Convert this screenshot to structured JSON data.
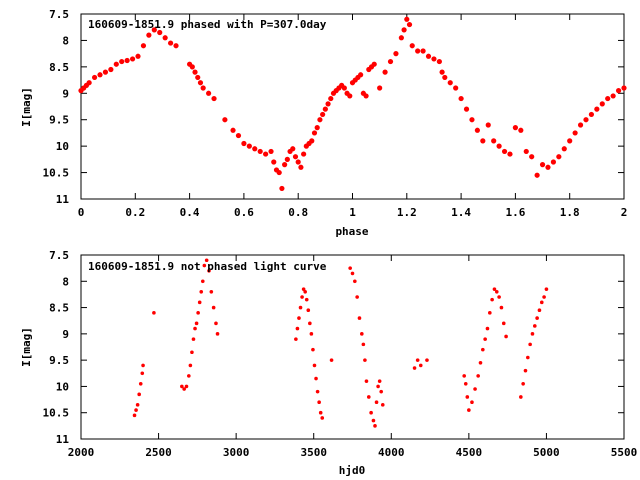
{
  "colors": {
    "points": "#ff0000",
    "frame": "#000000",
    "background": "#ffffff"
  },
  "chart_data": [
    {
      "type": "scatter",
      "title": "160609-1851.9 phased with P=307.0day",
      "xlabel": "phase",
      "ylabel": "I[mag]",
      "xlim": [
        0,
        2
      ],
      "ylim": [
        7.5,
        11
      ],
      "y_inverted": true,
      "grid": false,
      "x_ticks": [
        "0",
        "0.2",
        "0.4",
        "0.6",
        "0.8",
        "1",
        "1.2",
        "1.4",
        "1.6",
        "1.8",
        "2"
      ],
      "y_ticks": [
        "7.5",
        "8",
        "8.5",
        "9",
        "9.5",
        "10",
        "10.5",
        "11"
      ],
      "points": [
        [
          0.0,
          8.95
        ],
        [
          0.01,
          8.9
        ],
        [
          0.02,
          8.85
        ],
        [
          0.03,
          8.8
        ],
        [
          0.05,
          8.7
        ],
        [
          0.07,
          8.65
        ],
        [
          0.09,
          8.6
        ],
        [
          0.11,
          8.55
        ],
        [
          0.13,
          8.45
        ],
        [
          0.15,
          8.4
        ],
        [
          0.17,
          8.38
        ],
        [
          0.19,
          8.35
        ],
        [
          0.21,
          8.3
        ],
        [
          0.23,
          8.1
        ],
        [
          0.25,
          7.9
        ],
        [
          0.27,
          7.8
        ],
        [
          0.29,
          7.85
        ],
        [
          0.31,
          7.95
        ],
        [
          0.33,
          8.05
        ],
        [
          0.35,
          8.1
        ],
        [
          0.4,
          8.45
        ],
        [
          0.41,
          8.5
        ],
        [
          0.42,
          8.6
        ],
        [
          0.43,
          8.7
        ],
        [
          0.44,
          8.8
        ],
        [
          0.45,
          8.9
        ],
        [
          0.47,
          9.0
        ],
        [
          0.49,
          9.1
        ],
        [
          0.53,
          9.5
        ],
        [
          0.56,
          9.7
        ],
        [
          0.58,
          9.8
        ],
        [
          0.6,
          9.95
        ],
        [
          0.62,
          10.0
        ],
        [
          0.64,
          10.05
        ],
        [
          0.66,
          10.1
        ],
        [
          0.68,
          10.15
        ],
        [
          0.7,
          10.1
        ],
        [
          0.71,
          10.3
        ],
        [
          0.72,
          10.45
        ],
        [
          0.73,
          10.5
        ],
        [
          0.74,
          10.8
        ],
        [
          0.75,
          10.35
        ],
        [
          0.76,
          10.25
        ],
        [
          0.77,
          10.1
        ],
        [
          0.78,
          10.05
        ],
        [
          0.79,
          10.2
        ],
        [
          0.8,
          10.3
        ],
        [
          0.81,
          10.4
        ],
        [
          0.82,
          10.15
        ],
        [
          0.83,
          10.0
        ],
        [
          0.84,
          9.95
        ],
        [
          0.85,
          9.9
        ],
        [
          0.86,
          9.75
        ],
        [
          0.87,
          9.65
        ],
        [
          0.88,
          9.5
        ],
        [
          0.89,
          9.4
        ],
        [
          0.9,
          9.3
        ],
        [
          0.91,
          9.2
        ],
        [
          0.92,
          9.1
        ],
        [
          0.93,
          9.0
        ],
        [
          0.94,
          8.95
        ],
        [
          0.95,
          8.9
        ],
        [
          0.96,
          8.85
        ],
        [
          0.97,
          8.9
        ],
        [
          0.98,
          9.0
        ],
        [
          0.99,
          9.05
        ],
        [
          1.0,
          8.8
        ],
        [
          1.01,
          8.75
        ],
        [
          1.02,
          8.7
        ],
        [
          1.03,
          8.65
        ],
        [
          1.04,
          9.0
        ],
        [
          1.05,
          9.05
        ],
        [
          1.06,
          8.55
        ],
        [
          1.07,
          8.5
        ],
        [
          1.08,
          8.45
        ],
        [
          1.1,
          8.9
        ],
        [
          1.12,
          8.6
        ],
        [
          1.14,
          8.4
        ],
        [
          1.16,
          8.25
        ],
        [
          1.18,
          7.95
        ],
        [
          1.19,
          7.8
        ],
        [
          1.2,
          7.6
        ],
        [
          1.21,
          7.7
        ],
        [
          1.22,
          8.1
        ],
        [
          1.24,
          8.2
        ],
        [
          1.26,
          8.2
        ],
        [
          1.28,
          8.3
        ],
        [
          1.3,
          8.35
        ],
        [
          1.32,
          8.4
        ],
        [
          1.33,
          8.6
        ],
        [
          1.34,
          8.7
        ],
        [
          1.36,
          8.8
        ],
        [
          1.38,
          8.9
        ],
        [
          1.4,
          9.1
        ],
        [
          1.42,
          9.3
        ],
        [
          1.44,
          9.5
        ],
        [
          1.46,
          9.7
        ],
        [
          1.48,
          9.9
        ],
        [
          1.5,
          9.6
        ],
        [
          1.52,
          9.9
        ],
        [
          1.54,
          10.0
        ],
        [
          1.56,
          10.1
        ],
        [
          1.58,
          10.15
        ],
        [
          1.6,
          9.65
        ],
        [
          1.62,
          9.7
        ],
        [
          1.64,
          10.1
        ],
        [
          1.66,
          10.2
        ],
        [
          1.68,
          10.55
        ],
        [
          1.7,
          10.35
        ],
        [
          1.72,
          10.4
        ],
        [
          1.74,
          10.3
        ],
        [
          1.76,
          10.2
        ],
        [
          1.78,
          10.05
        ],
        [
          1.8,
          9.9
        ],
        [
          1.82,
          9.75
        ],
        [
          1.84,
          9.6
        ],
        [
          1.86,
          9.5
        ],
        [
          1.88,
          9.4
        ],
        [
          1.9,
          9.3
        ],
        [
          1.92,
          9.2
        ],
        [
          1.94,
          9.1
        ],
        [
          1.96,
          9.05
        ],
        [
          1.98,
          8.95
        ],
        [
          2.0,
          8.9
        ]
      ]
    },
    {
      "type": "scatter",
      "title": "160609-1851.9 not phased light curve",
      "xlabel": "hjd0",
      "ylabel": "I[mag]",
      "xlim": [
        2000,
        5500
      ],
      "ylim": [
        7.5,
        11
      ],
      "y_inverted": true,
      "grid": false,
      "x_ticks": [
        "2000",
        "2500",
        "3000",
        "3500",
        "4000",
        "4500",
        "5000",
        "5500"
      ],
      "y_ticks": [
        "7.5",
        "8",
        "8.5",
        "9",
        "9.5",
        "10",
        "10.5",
        "11"
      ],
      "points": [
        [
          2345,
          10.55
        ],
        [
          2355,
          10.45
        ],
        [
          2365,
          10.35
        ],
        [
          2375,
          10.15
        ],
        [
          2385,
          9.95
        ],
        [
          2395,
          9.75
        ],
        [
          2400,
          9.6
        ],
        [
          2470,
          8.6
        ],
        [
          2650,
          10.0
        ],
        [
          2665,
          10.05
        ],
        [
          2680,
          10.0
        ],
        [
          2695,
          9.8
        ],
        [
          2705,
          9.6
        ],
        [
          2715,
          9.35
        ],
        [
          2725,
          9.1
        ],
        [
          2735,
          8.9
        ],
        [
          2745,
          8.8
        ],
        [
          2755,
          8.6
        ],
        [
          2765,
          8.4
        ],
        [
          2775,
          8.2
        ],
        [
          2785,
          8.0
        ],
        [
          2795,
          7.7
        ],
        [
          2810,
          7.6
        ],
        [
          2825,
          7.8
        ],
        [
          2840,
          8.2
        ],
        [
          2855,
          8.5
        ],
        [
          2870,
          8.8
        ],
        [
          2880,
          9.0
        ],
        [
          3385,
          9.1
        ],
        [
          3395,
          8.9
        ],
        [
          3405,
          8.7
        ],
        [
          3415,
          8.5
        ],
        [
          3425,
          8.3
        ],
        [
          3435,
          8.15
        ],
        [
          3445,
          8.2
        ],
        [
          3455,
          8.35
        ],
        [
          3465,
          8.55
        ],
        [
          3475,
          8.8
        ],
        [
          3485,
          9.0
        ],
        [
          3495,
          9.3
        ],
        [
          3505,
          9.6
        ],
        [
          3515,
          9.85
        ],
        [
          3525,
          10.1
        ],
        [
          3535,
          10.3
        ],
        [
          3545,
          10.5
        ],
        [
          3555,
          10.6
        ],
        [
          3615,
          9.5
        ],
        [
          3735,
          7.75
        ],
        [
          3750,
          7.85
        ],
        [
          3765,
          8.0
        ],
        [
          3780,
          8.3
        ],
        [
          3795,
          8.7
        ],
        [
          3810,
          9.0
        ],
        [
          3820,
          9.2
        ],
        [
          3830,
          9.5
        ],
        [
          3840,
          9.9
        ],
        [
          3855,
          10.2
        ],
        [
          3870,
          10.5
        ],
        [
          3885,
          10.65
        ],
        [
          3895,
          10.75
        ],
        [
          3905,
          10.3
        ],
        [
          3915,
          10.0
        ],
        [
          3925,
          9.9
        ],
        [
          3935,
          10.1
        ],
        [
          3945,
          10.35
        ],
        [
          4150,
          9.65
        ],
        [
          4170,
          9.5
        ],
        [
          4190,
          9.6
        ],
        [
          4230,
          9.5
        ],
        [
          4470,
          9.8
        ],
        [
          4480,
          9.95
        ],
        [
          4490,
          10.2
        ],
        [
          4500,
          10.45
        ],
        [
          4520,
          10.3
        ],
        [
          4540,
          10.05
        ],
        [
          4560,
          9.8
        ],
        [
          4575,
          9.55
        ],
        [
          4590,
          9.3
        ],
        [
          4605,
          9.1
        ],
        [
          4620,
          8.9
        ],
        [
          4635,
          8.6
        ],
        [
          4650,
          8.35
        ],
        [
          4665,
          8.15
        ],
        [
          4680,
          8.2
        ],
        [
          4695,
          8.3
        ],
        [
          4710,
          8.5
        ],
        [
          4725,
          8.8
        ],
        [
          4740,
          9.05
        ],
        [
          4835,
          10.2
        ],
        [
          4850,
          9.95
        ],
        [
          4865,
          9.7
        ],
        [
          4880,
          9.45
        ],
        [
          4895,
          9.2
        ],
        [
          4910,
          9.0
        ],
        [
          4925,
          8.85
        ],
        [
          4940,
          8.7
        ],
        [
          4955,
          8.55
        ],
        [
          4970,
          8.4
        ],
        [
          4985,
          8.3
        ],
        [
          5000,
          8.15
        ]
      ]
    }
  ]
}
